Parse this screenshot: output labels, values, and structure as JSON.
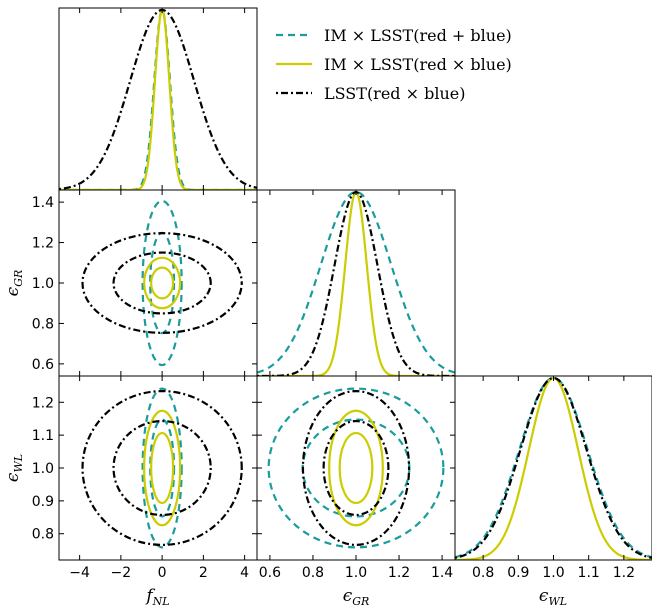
{
  "chart_data": {
    "type": "triangle-corner",
    "parameters": [
      "f_NL",
      "ϵ_GR",
      "ϵ_WL"
    ],
    "axis_labels": {
      "f_NL": {
        "base": "f",
        "sub": "NL"
      },
      "eps_GR": {
        "base": "ϵ",
        "sub": "GR"
      },
      "eps_WL": {
        "base": "ϵ",
        "sub": "WL"
      }
    },
    "ranges": {
      "f_NL": [
        -5,
        4.6
      ],
      "eps_GR": [
        0.54,
        1.46
      ],
      "eps_WL": [
        0.72,
        1.28
      ]
    },
    "ticks": {
      "f_NL": [
        "−4",
        "−2",
        "0",
        "2",
        "4"
      ],
      "f_NL_values": [
        -4,
        -2,
        0,
        2,
        4
      ],
      "eps_GR": [
        "0.6",
        "0.8",
        "1.0",
        "1.2",
        "1.4"
      ],
      "eps_GR_values": [
        0.6,
        0.8,
        1.0,
        1.2,
        1.4
      ],
      "eps_WL": [
        "0.8",
        "0.9",
        "1.0",
        "1.1",
        "1.2"
      ],
      "eps_WL_values": [
        0.8,
        0.9,
        1.0,
        1.1,
        1.2
      ]
    },
    "fiducial": {
      "f_NL": 0,
      "eps_GR": 1.0,
      "eps_WL": 1.0
    },
    "series": [
      {
        "name": "IM × LSST(red + blue)",
        "color": "#1a9c9c",
        "style": "dashed",
        "sigma": {
          "f_NL": 0.38,
          "eps_GR": 0.163,
          "eps_WL": 0.097
        }
      },
      {
        "name": "IM × LSST(red × blue)",
        "color": "#cccc00",
        "style": "solid",
        "sigma": {
          "f_NL": 0.35,
          "eps_GR": 0.05,
          "eps_WL": 0.07
        }
      },
      {
        "name": "LSST(red × blue)",
        "color": "#000000",
        "style": "dashdot",
        "sigma": {
          "f_NL": 1.55,
          "eps_GR": 0.099,
          "eps_WL": 0.094
        }
      }
    ],
    "legend": {
      "placement": "top-right",
      "entries": [
        "IM × LSST(red + blue)",
        "IM × LSST(red × blue)",
        "LSST(red × blue)"
      ]
    }
  }
}
